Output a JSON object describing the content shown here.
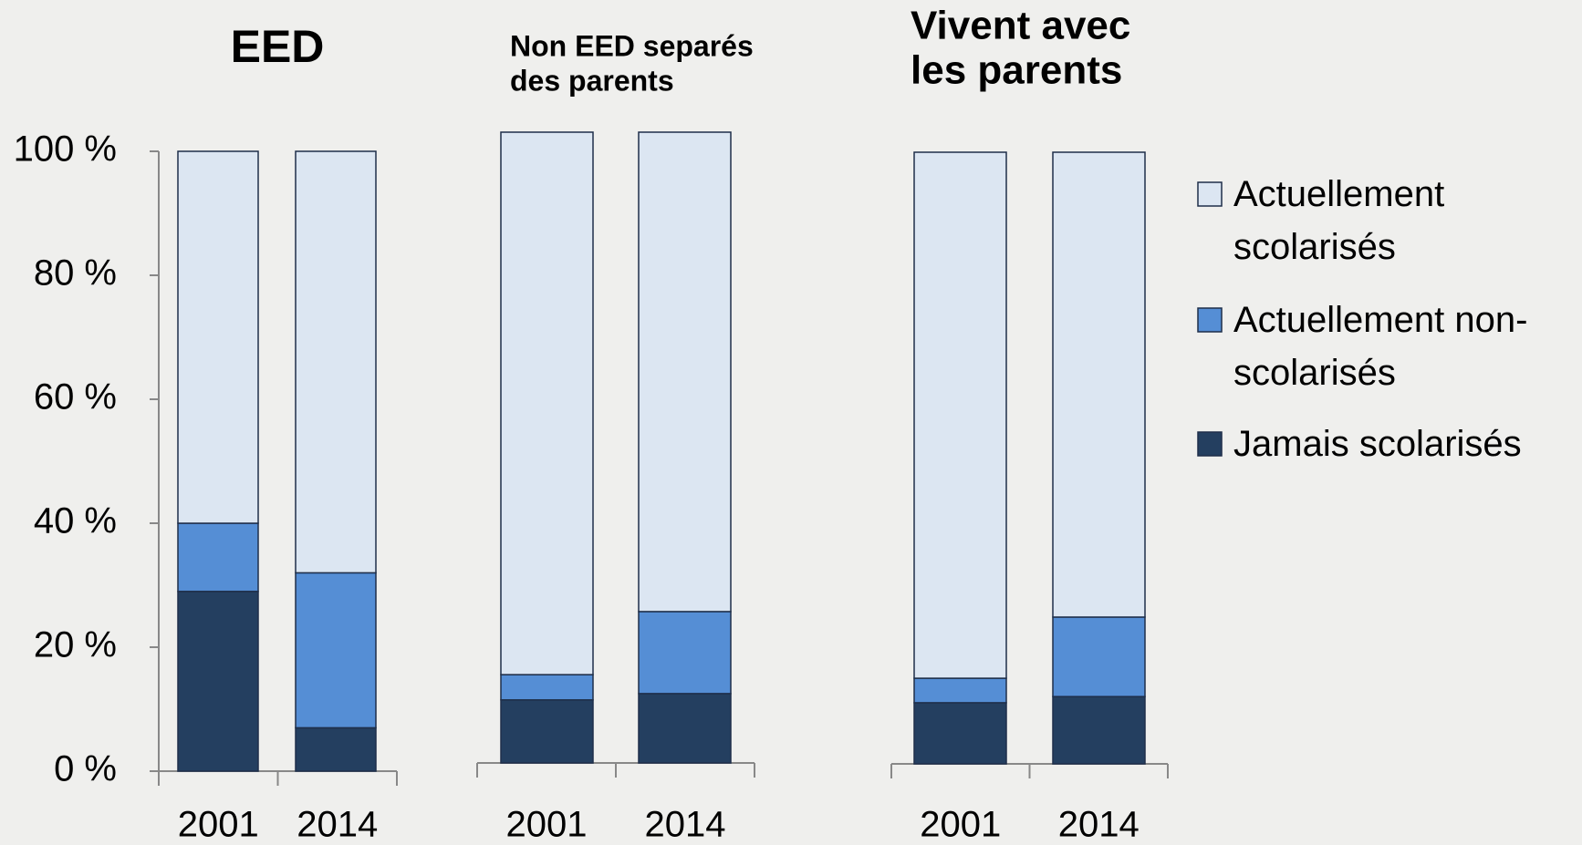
{
  "chart_data": [
    {
      "type": "bar",
      "stacked": true,
      "title": [
        "EED"
      ],
      "categories": [
        "2001",
        "2014"
      ],
      "ylim": [
        0,
        100
      ],
      "yticks": [
        {
          "value": 0,
          "label": "0 %"
        },
        {
          "value": 20,
          "label": "20 %"
        },
        {
          "value": 40,
          "label": "40 %"
        },
        {
          "value": 60,
          "label": "60 %"
        },
        {
          "value": 80,
          "label": "80 %"
        },
        {
          "value": 100,
          "label": "100 %"
        }
      ],
      "series": [
        {
          "name": "Jamais scolarisés",
          "color": "#243f60",
          "values": [
            29,
            7
          ]
        },
        {
          "name": "Actuellement non-scolarisés",
          "color": "#558ed5",
          "values": [
            11,
            25
          ]
        },
        {
          "name": "Actuellement scolarisés",
          "color": "#dce6f2",
          "values": [
            60,
            68
          ]
        }
      ]
    },
    {
      "type": "bar",
      "stacked": true,
      "title": [
        "Non EED separés",
        "des parents"
      ],
      "categories": [
        "2001",
        "2014"
      ],
      "ylim": [
        0,
        100
      ],
      "series": [
        {
          "name": "Jamais scolarisés",
          "color": "#243f60",
          "values": [
            10,
            11
          ]
        },
        {
          "name": "Actuellement non-scolarisés",
          "color": "#558ed5",
          "values": [
            4,
            13
          ]
        },
        {
          "name": "Actuellement scolarisés",
          "color": "#dce6f2",
          "values": [
            86,
            76
          ]
        }
      ]
    },
    {
      "type": "bar",
      "stacked": true,
      "title": [
        "Vivent avec",
        "les parents"
      ],
      "categories": [
        "2001",
        "2014"
      ],
      "ylim": [
        0,
        100
      ],
      "series": [
        {
          "name": "Jamais scolarisés",
          "color": "#243f60",
          "values": [
            10,
            11
          ]
        },
        {
          "name": "Actuellement non-scolarisés",
          "color": "#558ed5",
          "values": [
            4,
            13
          ]
        },
        {
          "name": "Actuellement scolarisés",
          "color": "#dce6f2",
          "values": [
            86,
            76
          ]
        }
      ]
    }
  ]
}
